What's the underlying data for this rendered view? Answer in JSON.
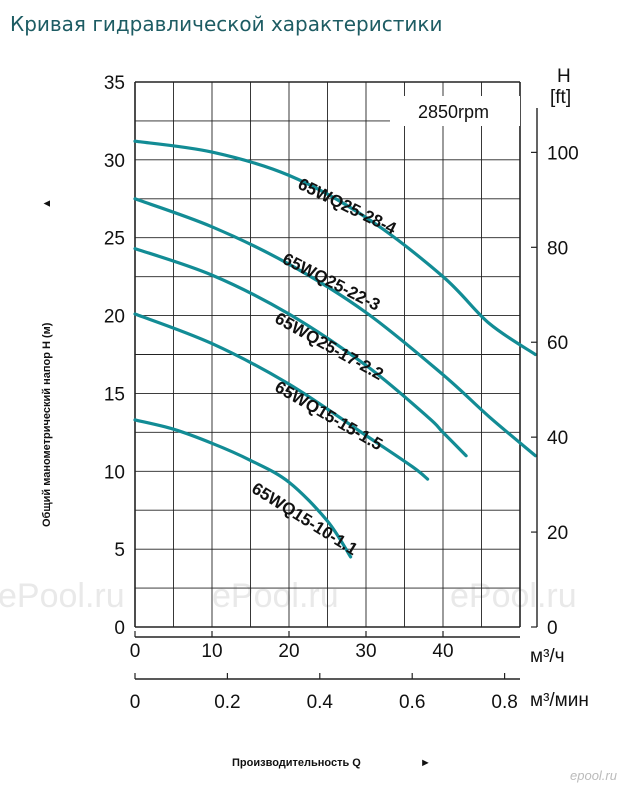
{
  "page_title": "Кривая гидравлической характеристики",
  "watermarks": [
    "ePool.ru",
    "ePool.ru",
    "ePool.ru"
  ],
  "corner_mark": "epool.ru",
  "chart_data": {
    "type": "line",
    "title": "Кривая гидравлической характеристики",
    "annotation": "2850rpm",
    "ylabel": "Общий манометрический напор H (м)",
    "ylabel_arrow": "▲",
    "xlabel": "Производительность Q",
    "xlabel_arrow": "►",
    "ylim": [
      0,
      35
    ],
    "xlim": [
      0,
      52
    ],
    "grid": true,
    "y_ticks": [
      0,
      5,
      10,
      15,
      20,
      25,
      30,
      35
    ],
    "x_ticks": [
      0,
      10,
      20,
      30,
      40
    ],
    "x_unit": "м³/ч",
    "x2_ticks": [
      "0",
      "0.2",
      "0.4",
      "0.6",
      "0.8"
    ],
    "x2_unit": "м³/мин",
    "y2_label_top": "H",
    "y2_label_unit": "[ft]",
    "y2_ticks": [
      "0",
      "20",
      "40",
      "60",
      "80",
      "100"
    ],
    "series": [
      {
        "name": "65WQ25-28-4",
        "points": [
          [
            0,
            31.2
          ],
          [
            10,
            30.5
          ],
          [
            20,
            29
          ],
          [
            30,
            26.3
          ],
          [
            40,
            22.5
          ],
          [
            46,
            19.5
          ],
          [
            52,
            17.5
          ]
        ]
      },
      {
        "name": "65WQ25-22-3",
        "points": [
          [
            0,
            27.5
          ],
          [
            10,
            25.7
          ],
          [
            20,
            23.3
          ],
          [
            30,
            20.2
          ],
          [
            40,
            16.2
          ],
          [
            46,
            13.5
          ],
          [
            52,
            11
          ]
        ]
      },
      {
        "name": "65WQ25-17-2.2",
        "points": [
          [
            0,
            24.3
          ],
          [
            10,
            22.6
          ],
          [
            20,
            20.1
          ],
          [
            30,
            16.8
          ],
          [
            38,
            13.5
          ],
          [
            40,
            12.5
          ],
          [
            43,
            11
          ]
        ]
      },
      {
        "name": "65WQ15-15-1.5",
        "points": [
          [
            0,
            20.1
          ],
          [
            10,
            18.2
          ],
          [
            20,
            15.6
          ],
          [
            30,
            12.3
          ],
          [
            36,
            10.3
          ],
          [
            38,
            9.5
          ]
        ]
      },
      {
        "name": "65WQ15-10-1.1",
        "points": [
          [
            0,
            13.3
          ],
          [
            5,
            12.7
          ],
          [
            10,
            11.8
          ],
          [
            15,
            10.7
          ],
          [
            20,
            9.3
          ],
          [
            25,
            6.8
          ],
          [
            28,
            4.5
          ]
        ]
      }
    ],
    "colors": {
      "curve": "#128c95",
      "grid": "#222222",
      "title": "#1d5c63"
    }
  }
}
